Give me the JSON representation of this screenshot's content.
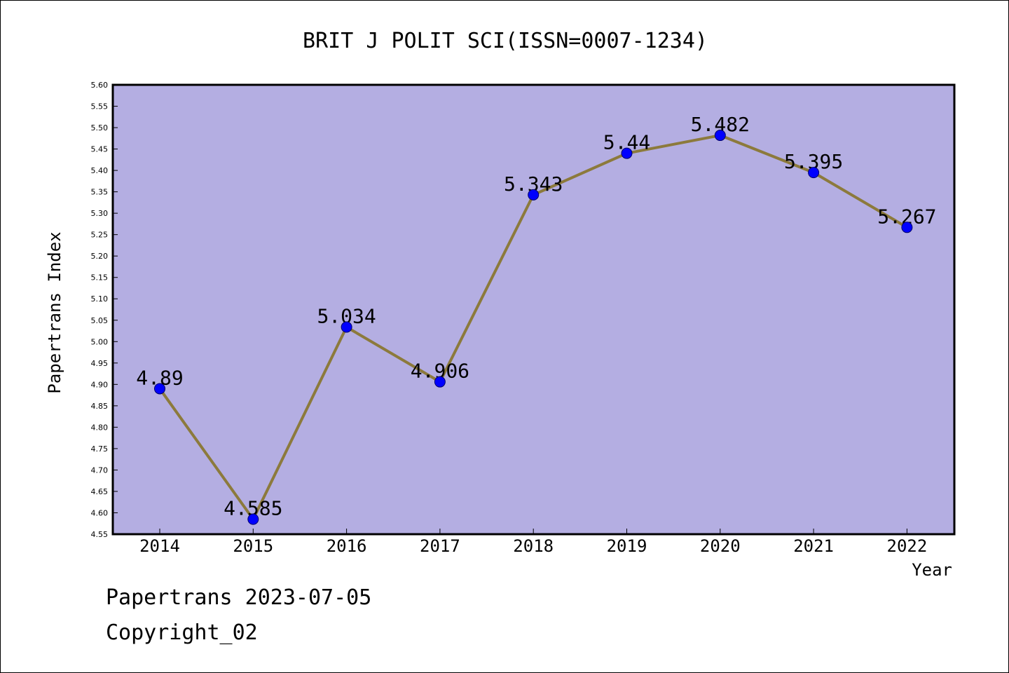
{
  "chart_data": {
    "type": "line",
    "title": "BRIT J POLIT SCI(ISSN=0007-1234)",
    "xlabel": "Year",
    "ylabel": "Papertrans Index",
    "categories": [
      "2014",
      "2015",
      "2016",
      "2017",
      "2018",
      "2019",
      "2020",
      "2021",
      "2022"
    ],
    "series": [
      {
        "values": [
          4.89,
          4.585,
          5.034,
          4.906,
          5.343,
          5.44,
          5.482,
          5.395,
          5.267
        ]
      }
    ],
    "data_labels": [
      "4.89",
      "4.585",
      "5.034",
      "4.906",
      "5.343",
      "5.44",
      "5.482",
      "5.395",
      "5.267"
    ],
    "ylim": [
      4.55,
      5.6
    ],
    "ytick_step": 0.05,
    "grid": false,
    "colors": {
      "plot_bg": "#b4aee2",
      "line": "#8c7a3c",
      "marker": "#0000ff"
    }
  },
  "footer": {
    "line1": "Papertrans 2023-07-05",
    "line2": "Copyright_02"
  }
}
